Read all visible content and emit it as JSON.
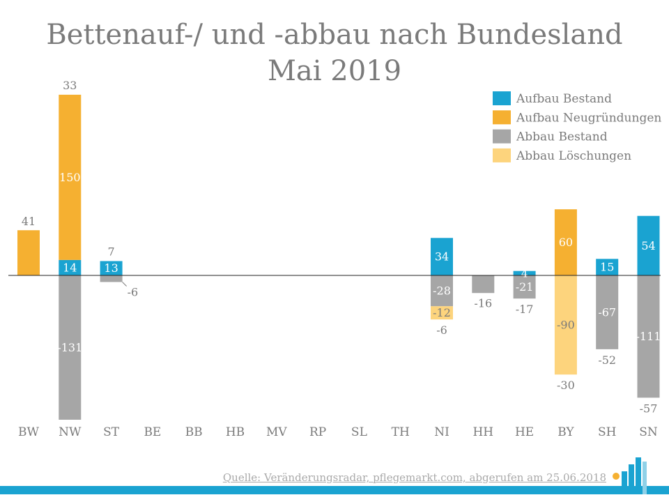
{
  "chart_data": {
    "type": "bar",
    "stacked": true,
    "title": "Bettenauf-/ und -abbau nach Bundesland",
    "subtitle": "Mai 2019",
    "categories": [
      "BW",
      "NW",
      "ST",
      "BE",
      "BB",
      "HB",
      "MV",
      "RP",
      "SL",
      "TH",
      "NI",
      "HH",
      "HE",
      "BY",
      "SH",
      "SN"
    ],
    "series": [
      {
        "name": "Aufbau Bestand",
        "color": "#1aa3d1",
        "values": [
          0,
          14,
          13,
          null,
          null,
          null,
          null,
          null,
          null,
          null,
          34,
          0,
          4,
          0,
          15,
          54
        ]
      },
      {
        "name": "Aufbau Neugründungen",
        "color": "#f5b031",
        "values": [
          41,
          150,
          0,
          null,
          null,
          null,
          null,
          null,
          null,
          null,
          0,
          0,
          0,
          60,
          0,
          0
        ]
      },
      {
        "name": "Abbau Bestand",
        "color": "#a6a6a6",
        "values": [
          0,
          -131,
          -6,
          null,
          null,
          null,
          null,
          null,
          null,
          null,
          -28,
          -16,
          -21,
          0,
          -67,
          -111
        ]
      },
      {
        "name": "Abbau Löschungen",
        "color": "#fdd47d",
        "values": [
          0,
          0,
          0,
          null,
          null,
          null,
          null,
          null,
          null,
          null,
          -12,
          0,
          0,
          -90,
          0,
          0
        ]
      }
    ],
    "segment_labels": [
      {
        "cat": "BW",
        "series": "Aufbau Neugründungen",
        "text": "41",
        "placement": "above"
      },
      {
        "cat": "NW",
        "series": "Aufbau Bestand",
        "text": "14",
        "placement": "inside"
      },
      {
        "cat": "NW",
        "series": "Aufbau Neugründungen",
        "text": "150",
        "placement": "inside"
      },
      {
        "cat": "NW",
        "series": "Abbau Bestand",
        "text": "-131",
        "placement": "inside"
      },
      {
        "cat": "ST",
        "series": "Aufbau Bestand",
        "text": "13",
        "placement": "inside"
      },
      {
        "cat": "NI",
        "series": "Aufbau Bestand",
        "text": "34",
        "placement": "inside"
      },
      {
        "cat": "NI",
        "series": "Abbau Bestand",
        "text": "-28",
        "placement": "inside"
      },
      {
        "cat": "NI",
        "series": "Abbau Löschungen",
        "text": "-12",
        "placement": "inside"
      },
      {
        "cat": "HH",
        "series": "Abbau Bestand",
        "text": "-16",
        "placement": "below"
      },
      {
        "cat": "HE",
        "series": "Aufbau Bestand",
        "text": "4",
        "placement": "inside"
      },
      {
        "cat": "HE",
        "series": "Abbau Bestand",
        "text": "-21",
        "placement": "inside"
      },
      {
        "cat": "BY",
        "series": "Aufbau Neugründungen",
        "text": "60",
        "placement": "inside"
      },
      {
        "cat": "BY",
        "series": "Abbau Löschungen",
        "text": "-90",
        "placement": "inside"
      },
      {
        "cat": "SH",
        "series": "Aufbau Bestand",
        "text": "15",
        "placement": "inside"
      },
      {
        "cat": "SH",
        "series": "Abbau Bestand",
        "text": "-67",
        "placement": "inside"
      },
      {
        "cat": "SN",
        "series": "Aufbau Bestand",
        "text": "54",
        "placement": "inside"
      },
      {
        "cat": "SN",
        "series": "Abbau Bestand",
        "text": "-111",
        "placement": "inside"
      }
    ],
    "net_labels": [
      {
        "cat": "NW",
        "text": "33",
        "position": "top"
      },
      {
        "cat": "ST",
        "text": "7",
        "position": "top"
      },
      {
        "cat": "ST",
        "text": "-6",
        "position": "bottom-right"
      },
      {
        "cat": "NI",
        "text": "-6",
        "position": "bottom"
      },
      {
        "cat": "HE",
        "text": "-17",
        "position": "bottom"
      },
      {
        "cat": "BY",
        "text": "-30",
        "position": "bottom"
      },
      {
        "cat": "SH",
        "text": "-52",
        "position": "bottom"
      },
      {
        "cat": "SN",
        "text": "-57",
        "position": "bottom"
      }
    ],
    "ylim": [
      -131,
      150
    ],
    "grid": false,
    "legend_position": "top-right"
  },
  "source": "Quelle: Veränderungsradar, pflegemarkt.com, abgerufen am 25.06.2018"
}
